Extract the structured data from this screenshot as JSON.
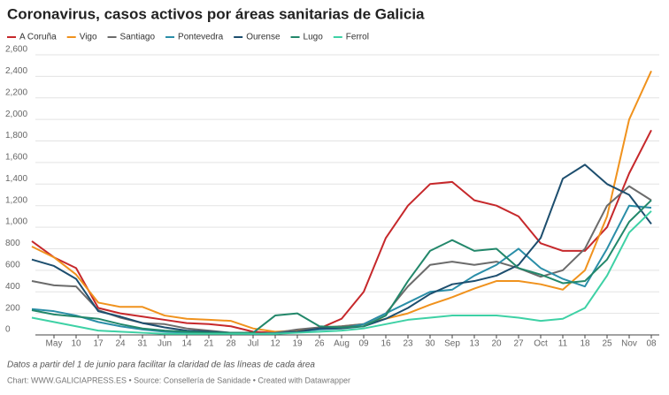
{
  "chart_data": {
    "type": "line",
    "title": "Coronavirus, casos activos por áreas sanitarias de Galicia",
    "note": "Datos a partir del 1 de junio para facilitar la claridad de las líneas de cada área",
    "source": "Chart: WWW.GALICIAPRESS.ES • Source: Consellería de Sanidade • Created with Datawrapper",
    "categories": [
      null,
      "May",
      "10",
      "17",
      "24",
      "31",
      "Jun",
      "14",
      "21",
      "28",
      "Jul",
      "12",
      "19",
      "26",
      "Aug",
      "09",
      "16",
      "23",
      "30",
      "Sep",
      "13",
      "20",
      "27",
      "Oct",
      "11",
      "18",
      "25",
      "Nov",
      "08"
    ],
    "series": [
      {
        "name": "A Coruña",
        "color": "#c6282b",
        "values": [
          870,
          720,
          620,
          250,
          200,
          170,
          140,
          110,
          100,
          80,
          30,
          20,
          30,
          60,
          150,
          400,
          900,
          1200,
          1400,
          1420,
          1250,
          1200,
          1100,
          850,
          780,
          780,
          1000,
          1500,
          1900
        ]
      },
      {
        "name": "Vigo",
        "color": "#f0921d",
        "values": [
          820,
          720,
          560,
          300,
          260,
          260,
          180,
          150,
          140,
          130,
          60,
          30,
          40,
          70,
          80,
          100,
          150,
          200,
          280,
          350,
          430,
          500,
          500,
          470,
          420,
          600,
          1100,
          2000,
          2450
        ]
      },
      {
        "name": "Santiago",
        "color": "#6b6b6b",
        "values": [
          500,
          460,
          450,
          230,
          160,
          110,
          100,
          60,
          40,
          20,
          10,
          20,
          50,
          70,
          80,
          100,
          200,
          450,
          650,
          680,
          650,
          680,
          620,
          540,
          600,
          800,
          1200,
          1380,
          1250
        ]
      },
      {
        "name": "Pontevedra",
        "color": "#2a8ea8",
        "values": [
          240,
          220,
          180,
          120,
          80,
          50,
          30,
          20,
          20,
          15,
          10,
          15,
          30,
          50,
          60,
          100,
          200,
          300,
          400,
          420,
          550,
          650,
          800,
          620,
          520,
          450,
          800,
          1200,
          1180
        ]
      },
      {
        "name": "Ourense",
        "color": "#1d4e6e",
        "values": [
          700,
          640,
          520,
          220,
          170,
          110,
          70,
          40,
          30,
          20,
          10,
          10,
          30,
          60,
          60,
          80,
          150,
          250,
          380,
          470,
          500,
          550,
          650,
          900,
          1450,
          1580,
          1400,
          1300,
          1030
        ]
      },
      {
        "name": "Lugo",
        "color": "#22876a",
        "values": [
          230,
          190,
          170,
          150,
          100,
          60,
          40,
          30,
          20,
          20,
          20,
          180,
          200,
          80,
          70,
          80,
          180,
          500,
          780,
          880,
          780,
          800,
          620,
          560,
          480,
          500,
          700,
          1050,
          1250
        ]
      },
      {
        "name": "Ferrol",
        "color": "#3ed1a5",
        "values": [
          160,
          120,
          80,
          40,
          30,
          20,
          10,
          10,
          10,
          10,
          10,
          10,
          20,
          30,
          40,
          60,
          100,
          140,
          160,
          180,
          180,
          180,
          160,
          130,
          150,
          250,
          550,
          950,
          1150
        ]
      }
    ],
    "ylim": [
      0,
      2600
    ],
    "yticks": [
      0,
      200,
      400,
      600,
      800,
      {
        "value": 1000,
        "label": "1,000"
      },
      {
        "value": 1200,
        "label": "1,200"
      },
      {
        "value": 1400,
        "label": "1,400"
      },
      {
        "value": 1600,
        "label": "1,600"
      },
      {
        "value": 1800,
        "label": "1,800"
      },
      {
        "value": 2000,
        "label": "2,000"
      },
      {
        "value": 2200,
        "label": "2,200"
      },
      {
        "value": 2400,
        "label": "2,400"
      },
      {
        "value": 2600,
        "label": "2,600"
      }
    ],
    "grid": true
  }
}
